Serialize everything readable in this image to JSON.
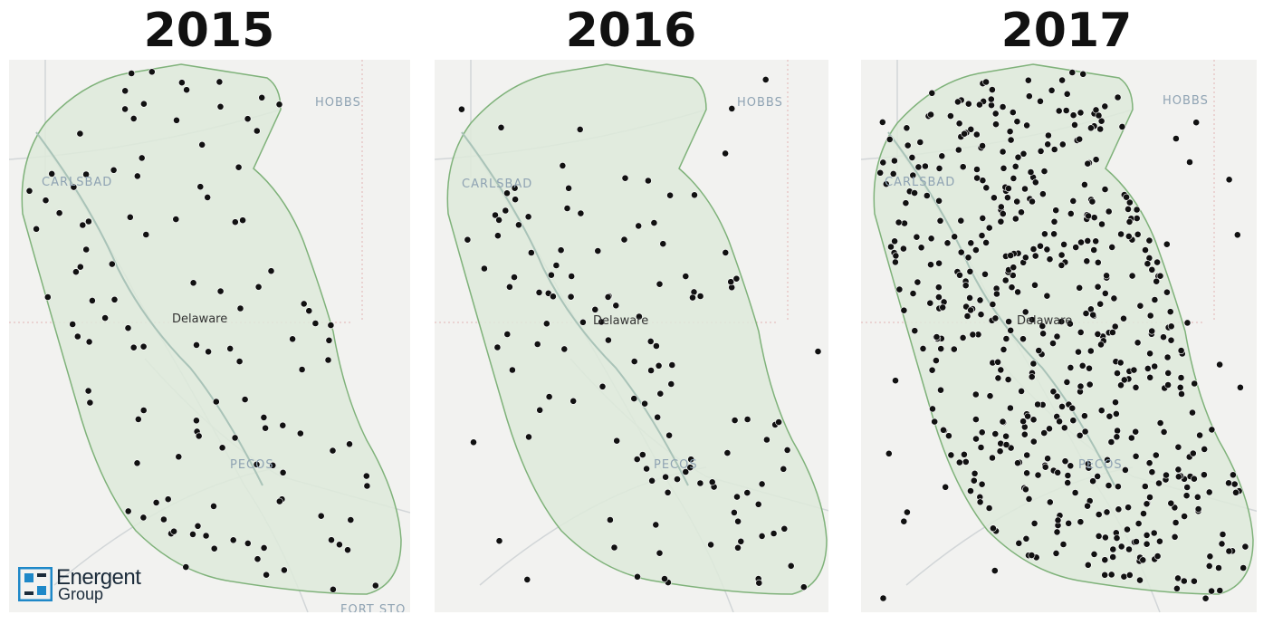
{
  "panels": [
    {
      "title": "2015"
    },
    {
      "title": "2016"
    },
    {
      "title": "2017"
    }
  ],
  "map_labels": {
    "hobbs": "HOBBS",
    "carlsbad": "CARLSBAD",
    "delaware": "Delaware",
    "pecos": "PECOS",
    "fort_stockton": "FORT STO"
  },
  "logo": {
    "line1": "Energent",
    "line2": "Group"
  },
  "colors": {
    "basin_fill": "#deeada",
    "basin_stroke": "#7fb27a",
    "well_dot": "#111111",
    "map_bg": "#f2f2f0"
  }
}
